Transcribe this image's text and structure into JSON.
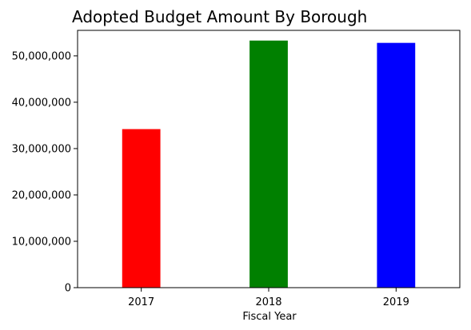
{
  "chart_data": {
    "type": "bar",
    "title": "Adopted Budget Amount By Borough",
    "xlabel": "Fiscal Year",
    "ylabel": "",
    "categories": [
      "2017",
      "2018",
      "2019"
    ],
    "values": [
      34200000,
      53300000,
      52800000
    ],
    "colors": [
      "#ff0000",
      "#008000",
      "#0000ff"
    ],
    "ylim": [
      0,
      55500000
    ],
    "yticks": [
      0,
      10000000,
      20000000,
      30000000,
      40000000,
      50000000
    ],
    "ytick_labels": [
      "0",
      "10,000,000",
      "20,000,000",
      "30,000,000",
      "40,000,000",
      "50,000,000"
    ],
    "grid": false,
    "legend": "none"
  }
}
